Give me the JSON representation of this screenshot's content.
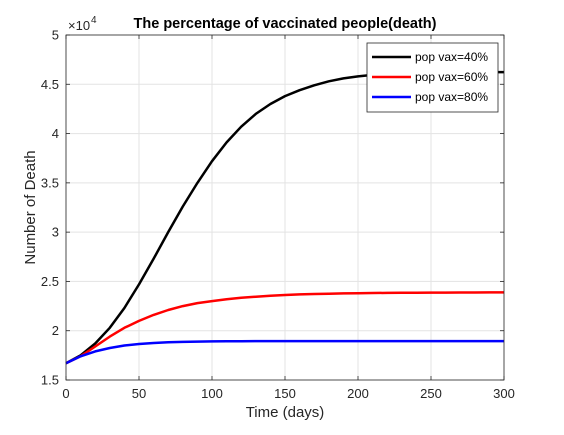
{
  "chart_data": {
    "type": "line",
    "title": "The percentage of vaccinated people(death)",
    "xlabel": "Time (days)",
    "ylabel": "Number of Death",
    "xlim": [
      0,
      300
    ],
    "ylim": [
      15000,
      50000
    ],
    "x_ticks": [
      0,
      50,
      100,
      150,
      200,
      250,
      300
    ],
    "x_tick_labels": [
      "0",
      "50",
      "100",
      "150",
      "200",
      "250",
      "300"
    ],
    "y_ticks": [
      15000,
      20000,
      25000,
      30000,
      35000,
      40000,
      45000,
      50000
    ],
    "y_tick_labels": [
      "1.5",
      "2",
      "2.5",
      "3",
      "3.5",
      "4",
      "4.5",
      "5"
    ],
    "y_exponent_base": "×10",
    "y_exponent_power": "4",
    "grid": true,
    "legend_position": "top-right",
    "x": [
      0,
      10,
      20,
      30,
      40,
      50,
      60,
      70,
      80,
      90,
      100,
      110,
      120,
      130,
      140,
      150,
      160,
      170,
      180,
      190,
      200,
      210,
      220,
      230,
      240,
      250,
      260,
      270,
      280,
      290,
      300
    ],
    "series": [
      {
        "name": "pop vax=40%",
        "color": "#000000",
        "values": [
          16700,
          17500,
          18700,
          20300,
          22300,
          24700,
          27300,
          30000,
          32600,
          35000,
          37200,
          39100,
          40700,
          42000,
          43000,
          43800,
          44400,
          44900,
          45300,
          45600,
          45800,
          45950,
          46050,
          46120,
          46170,
          46200,
          46220,
          46230,
          46235,
          46240,
          46240
        ]
      },
      {
        "name": "pop vax=60%",
        "color": "#ff0000",
        "values": [
          16700,
          17400,
          18400,
          19400,
          20300,
          21000,
          21600,
          22100,
          22500,
          22800,
          23000,
          23200,
          23350,
          23450,
          23550,
          23620,
          23680,
          23720,
          23760,
          23790,
          23810,
          23830,
          23840,
          23850,
          23860,
          23865,
          23870,
          23875,
          23880,
          23885,
          23890
        ]
      },
      {
        "name": "pop vax=80%",
        "color": "#0000ff",
        "values": [
          16700,
          17400,
          17900,
          18250,
          18500,
          18650,
          18750,
          18820,
          18870,
          18900,
          18920,
          18930,
          18940,
          18945,
          18950,
          18950,
          18950,
          18950,
          18950,
          18950,
          18950,
          18950,
          18950,
          18950,
          18950,
          18950,
          18950,
          18950,
          18950,
          18950,
          18950
        ]
      }
    ]
  }
}
